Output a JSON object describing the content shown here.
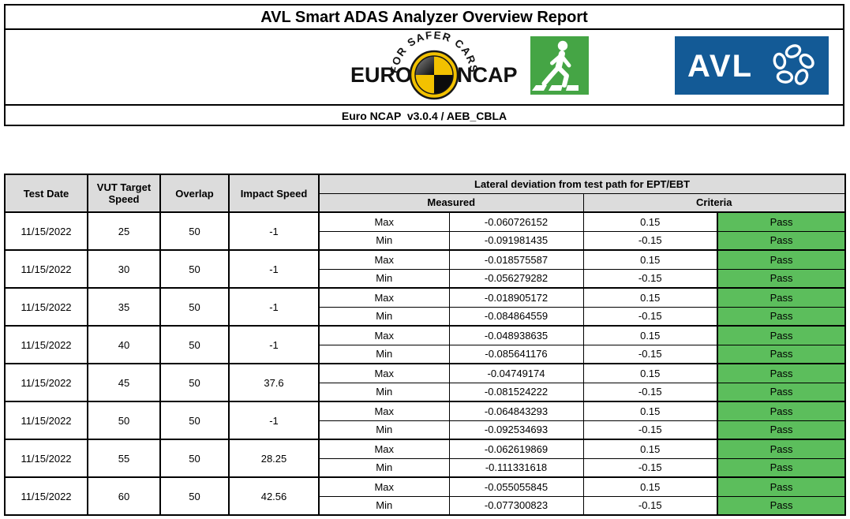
{
  "report": {
    "title": "AVL Smart ADAS Analyzer Overview Report",
    "subtitle": "Euro NCAP  v3.0.4 / AEB_CBLA"
  },
  "logos": {
    "euroncap": {
      "arc_text": "FOR SAFER CARS",
      "word_left": "EURO",
      "word_right": "NCAP",
      "icon": "crash-test-ball-icon"
    },
    "pedestrian": {
      "icon": "pedestrian-crossing-icon"
    },
    "avl": {
      "text": "AVL",
      "icon": "avl-pinwheel-icon"
    }
  },
  "colors": {
    "pass_green": "#5cbe5c",
    "header_gray": "#dcdcdc",
    "avl_blue": "#135a96",
    "ncap_yellow": "#f2c100",
    "pedestrian_green": "#45a545"
  },
  "table": {
    "headers": {
      "test_date": "Test Date",
      "vut_target_speed": "VUT Target Speed",
      "overlap": "Overlap",
      "impact_speed": "Impact Speed",
      "lateral_deviation": "Lateral deviation from test path for EPT/EBT",
      "measured": "Measured",
      "criteria": "Criteria"
    },
    "row_labels": {
      "max": "Max",
      "min": "Min"
    },
    "groups": [
      {
        "date": "11/15/2022",
        "vut_speed": "25",
        "overlap": "50",
        "impact_speed": "-1",
        "max": {
          "measured": "-0.060726152",
          "criteria": "0.15",
          "result": "Pass"
        },
        "min": {
          "measured": "-0.091981435",
          "criteria": "-0.15",
          "result": "Pass"
        }
      },
      {
        "date": "11/15/2022",
        "vut_speed": "30",
        "overlap": "50",
        "impact_speed": "-1",
        "max": {
          "measured": "-0.018575587",
          "criteria": "0.15",
          "result": "Pass"
        },
        "min": {
          "measured": "-0.056279282",
          "criteria": "-0.15",
          "result": "Pass"
        }
      },
      {
        "date": "11/15/2022",
        "vut_speed": "35",
        "overlap": "50",
        "impact_speed": "-1",
        "max": {
          "measured": "-0.018905172",
          "criteria": "0.15",
          "result": "Pass"
        },
        "min": {
          "measured": "-0.084864559",
          "criteria": "-0.15",
          "result": "Pass"
        }
      },
      {
        "date": "11/15/2022",
        "vut_speed": "40",
        "overlap": "50",
        "impact_speed": "-1",
        "max": {
          "measured": "-0.048938635",
          "criteria": "0.15",
          "result": "Pass"
        },
        "min": {
          "measured": "-0.085641176",
          "criteria": "-0.15",
          "result": "Pass"
        }
      },
      {
        "date": "11/15/2022",
        "vut_speed": "45",
        "overlap": "50",
        "impact_speed": "37.6",
        "max": {
          "measured": "-0.04749174",
          "criteria": "0.15",
          "result": "Pass"
        },
        "min": {
          "measured": "-0.081524222",
          "criteria": "-0.15",
          "result": "Pass"
        }
      },
      {
        "date": "11/15/2022",
        "vut_speed": "50",
        "overlap": "50",
        "impact_speed": "-1",
        "max": {
          "measured": "-0.064843293",
          "criteria": "0.15",
          "result": "Pass"
        },
        "min": {
          "measured": "-0.092534693",
          "criteria": "-0.15",
          "result": "Pass"
        }
      },
      {
        "date": "11/15/2022",
        "vut_speed": "55",
        "overlap": "50",
        "impact_speed": "28.25",
        "max": {
          "measured": "-0.062619869",
          "criteria": "0.15",
          "result": "Pass"
        },
        "min": {
          "measured": "-0.111331618",
          "criteria": "-0.15",
          "result": "Pass"
        }
      },
      {
        "date": "11/15/2022",
        "vut_speed": "60",
        "overlap": "50",
        "impact_speed": "42.56",
        "max": {
          "measured": "-0.055055845",
          "criteria": "0.15",
          "result": "Pass"
        },
        "min": {
          "measured": "-0.077300823",
          "criteria": "-0.15",
          "result": "Pass"
        }
      }
    ]
  }
}
